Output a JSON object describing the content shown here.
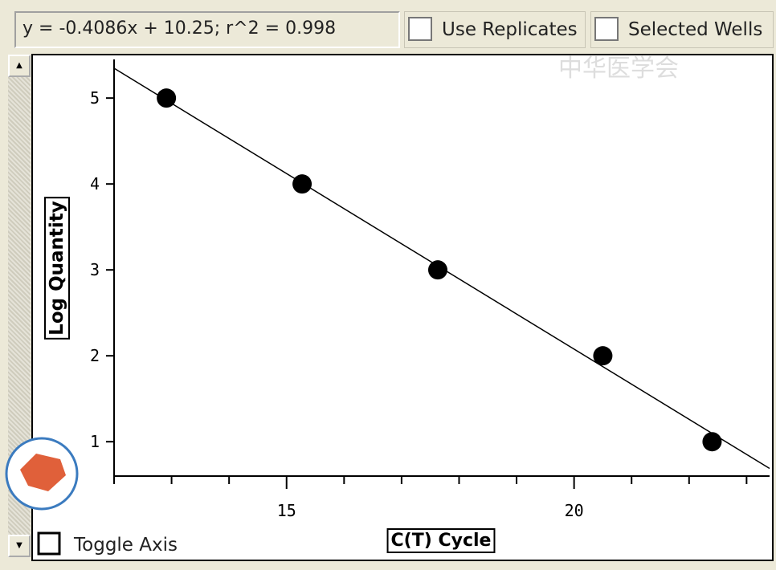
{
  "controls": {
    "use_replicates": "Use Replicates",
    "selected_wells": "Selected Wells",
    "toggle_axis": "Toggle Axis"
  },
  "watermark": "中华医学会",
  "chart_data": {
    "type": "scatter",
    "fit_label": "y = -0.4086x + 10.25;  r^2 = 0.998",
    "fit": {
      "slope": -0.4086,
      "intercept": 10.25
    },
    "x_label": "C(T) Cycle",
    "y_label": "Log Quantity",
    "x": [
      12.91,
      15.27,
      17.63,
      20.5,
      22.4
    ],
    "values": [
      5,
      4,
      3,
      2,
      1
    ],
    "color": "#000000",
    "xlim": [
      12,
      23.4
    ],
    "ylim": [
      0.6,
      5.45
    ],
    "xticks": [
      15,
      20
    ],
    "xminor_ticks": [
      12,
      13,
      14,
      16,
      17,
      18,
      19,
      21,
      22,
      23
    ],
    "yticks": [
      1,
      2,
      3,
      4,
      5
    ]
  }
}
